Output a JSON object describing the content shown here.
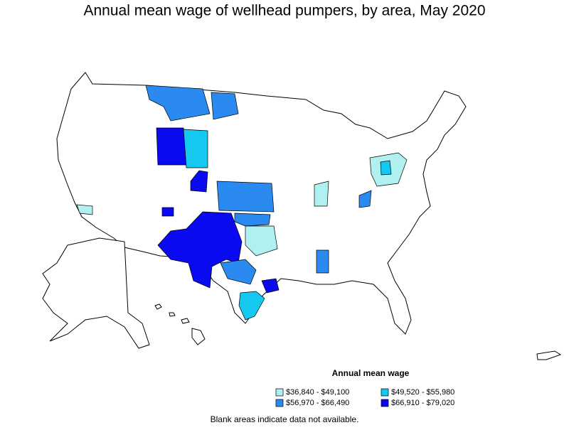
{
  "title": "Annual mean wage of wellhead pumpers, by area, May 2020",
  "legend": {
    "title": "Annual mean wage",
    "items": [
      {
        "label": "$36,840 - $49,100",
        "color": "#b0f0f0"
      },
      {
        "label": "$49,520 - $55,980",
        "color": "#14c8f0"
      },
      {
        "label": "$56,970 - $66,490",
        "color": "#2a8af0"
      },
      {
        "label": "$66,910 - $79,020",
        "color": "#0a0af0"
      }
    ]
  },
  "footnote": "Blank areas indicate data not available."
}
